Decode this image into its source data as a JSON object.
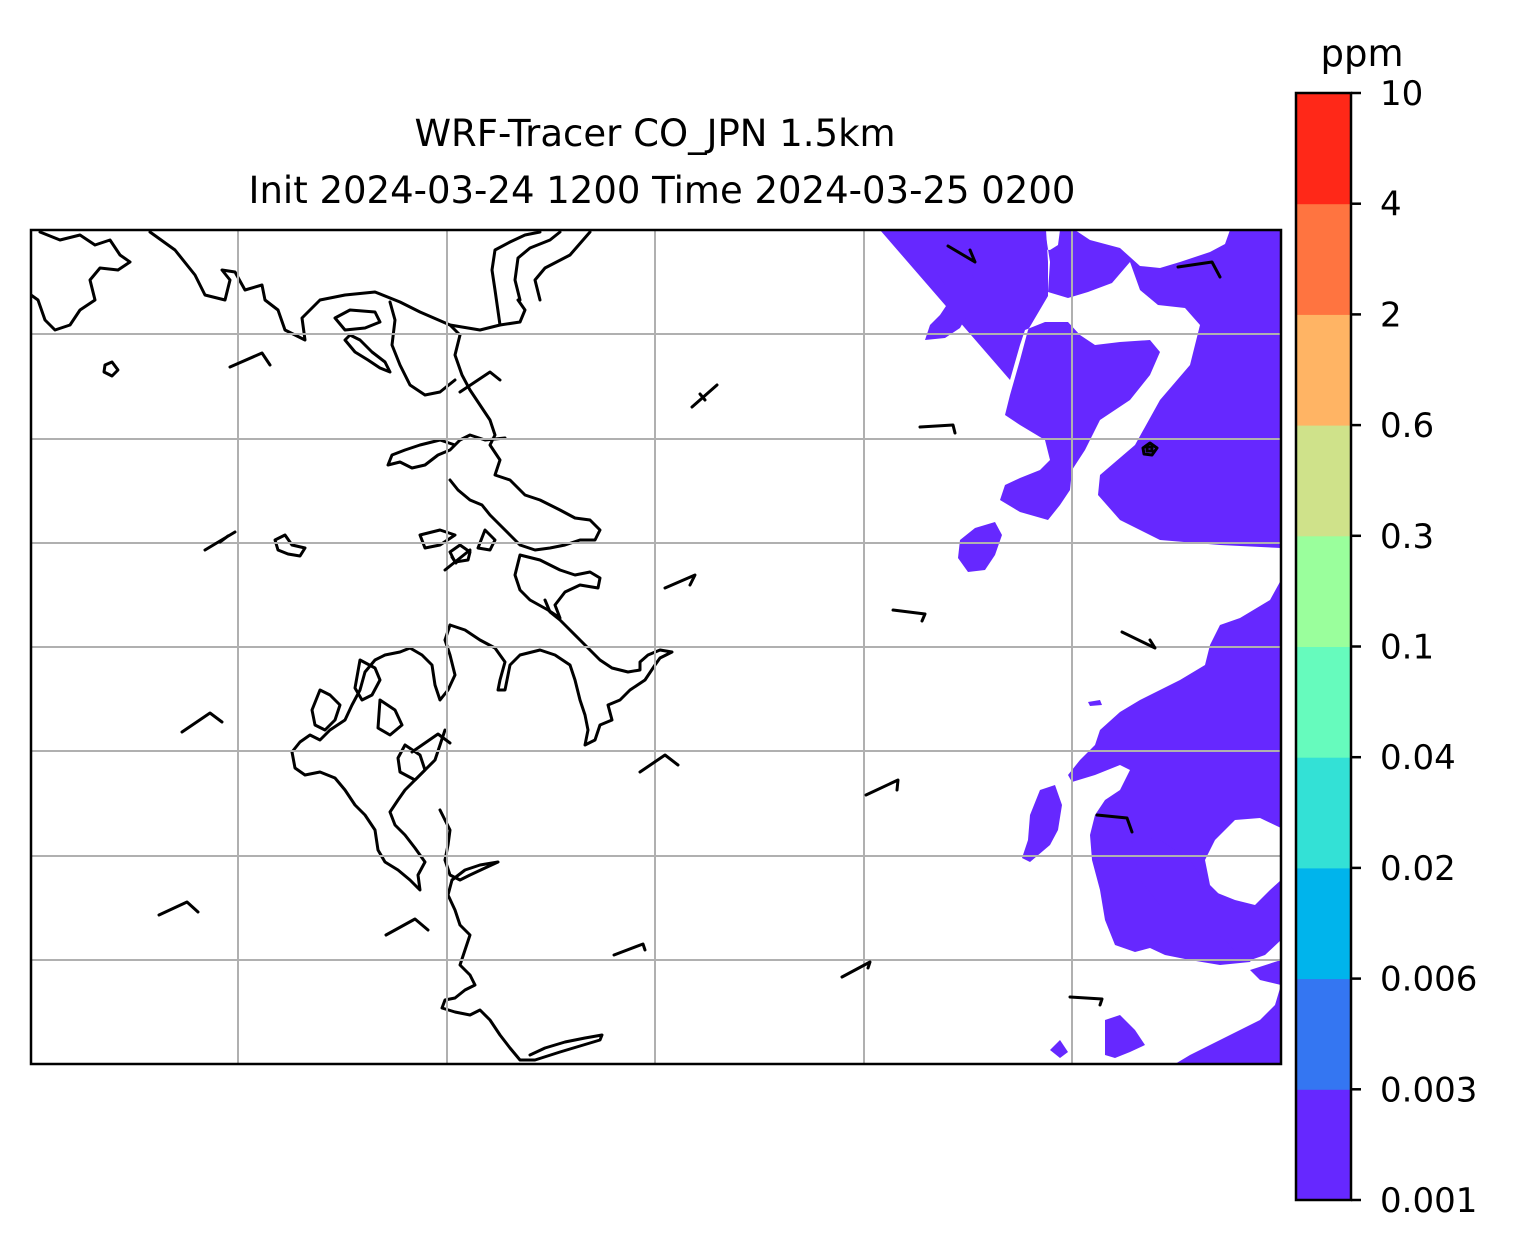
{
  "title": {
    "line1": "WRF-Tracer CO_JPN 1.5km",
    "line2": "Init 2024-03-24 1200 Time 2024-03-25 0200"
  },
  "colorbar": {
    "unit": "ppm",
    "levels": [
      "0.001",
      "0.003",
      "0.006",
      "0.02",
      "0.04",
      "0.1",
      "0.3",
      "0.6",
      "2",
      "4",
      "10"
    ],
    "colors": [
      "#6628ff",
      "#3476f2",
      "#00b4ec",
      "#33e1d6",
      "#66fbbd",
      "#9aff9c",
      "#cfe28a",
      "#ffb464",
      "#ff7440",
      "#ff2818"
    ]
  },
  "map": {
    "plume_color": "#6628ff",
    "coastline_color": "#000000",
    "gridline_color": "#b0b0b0"
  }
}
